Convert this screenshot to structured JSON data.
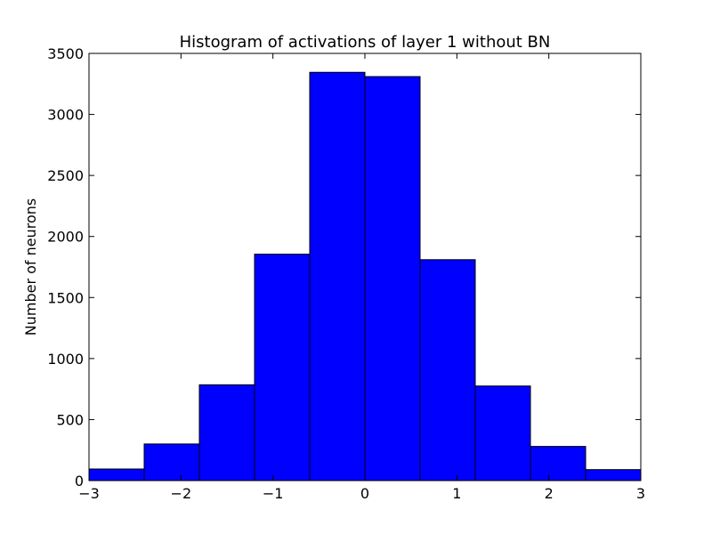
{
  "chart_data": {
    "type": "bar",
    "title": "Histogram of activations of layer 1  without BN",
    "xlabel": "",
    "ylabel": "Number of neurons",
    "xlim": [
      -3,
      3
    ],
    "ylim": [
      0,
      3500
    ],
    "bin_edges": [
      -3,
      -2.4,
      -1.8,
      -1.2,
      -0.6,
      0,
      0.6,
      1.2,
      1.8,
      2.4,
      3
    ],
    "values": [
      95,
      300,
      785,
      1855,
      3345,
      3310,
      1810,
      775,
      280,
      90
    ],
    "x_ticks": [
      -3,
      -2,
      -1,
      0,
      1,
      2,
      3
    ],
    "x_tick_labels": [
      "−3",
      "−2",
      "−1",
      "0",
      "1",
      "2",
      "3"
    ],
    "y_ticks": [
      0,
      500,
      1000,
      1500,
      2000,
      2500,
      3000,
      3500
    ],
    "y_tick_labels": [
      "0",
      "500",
      "1000",
      "1500",
      "2000",
      "2500",
      "3000",
      "3500"
    ],
    "grid": false,
    "bar_color": "#0000ff"
  }
}
